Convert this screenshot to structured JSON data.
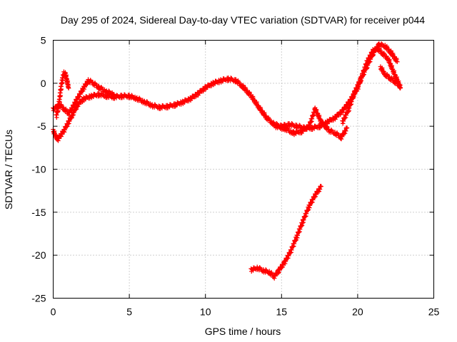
{
  "chart_data": {
    "type": "scatter",
    "title": "Day 295 of 2024, Sidereal Day-to-day VTEC variation (SDTVAR) for receiver p044",
    "xlabel": "GPS time / hours",
    "ylabel": "SDTVAR / TECUs",
    "xlim": [
      0,
      25
    ],
    "ylim": [
      -25,
      5
    ],
    "xticks": [
      0,
      5,
      10,
      15,
      20,
      25
    ],
    "yticks": [
      5,
      0,
      -5,
      -10,
      -15,
      -20,
      -25
    ],
    "grid": true,
    "marker": "plus",
    "color": "#ff0000",
    "series": [
      {
        "name": "main trace",
        "x": [
          0.0,
          0.1,
          0.2,
          0.3,
          0.5,
          0.7,
          1.0,
          1.3,
          1.6,
          2.0,
          2.5,
          3.0,
          3.5,
          4.0,
          4.5,
          5.0,
          5.5,
          6.0,
          6.5,
          7.0,
          7.5,
          8.0,
          8.5,
          9.0,
          9.5,
          10.0,
          10.5,
          11.0,
          11.5,
          12.0,
          12.5,
          13.0,
          13.5,
          14.0,
          14.5,
          15.0,
          15.5,
          16.0,
          16.5,
          17.0,
          17.5,
          18.0,
          18.5,
          19.0,
          19.5,
          20.0,
          20.3,
          20.6,
          21.0,
          21.3,
          21.6,
          22.0,
          22.3,
          22.6,
          22.8
        ],
        "y": [
          -5.5,
          -6.0,
          -6.3,
          -6.5,
          -6.0,
          -5.5,
          -4.5,
          -3.5,
          -2.5,
          -1.8,
          -1.5,
          -1.3,
          -1.5,
          -1.6,
          -1.5,
          -1.5,
          -1.8,
          -2.2,
          -2.6,
          -2.8,
          -2.7,
          -2.5,
          -2.2,
          -1.8,
          -1.2,
          -0.5,
          0.0,
          0.3,
          0.5,
          0.3,
          -0.5,
          -1.5,
          -2.8,
          -4.0,
          -4.8,
          -5.0,
          -4.8,
          -5.0,
          -5.2,
          -5.2,
          -5.0,
          -4.5,
          -4.0,
          -3.2,
          -2.0,
          -0.5,
          1.0,
          2.5,
          3.8,
          4.0,
          3.5,
          2.8,
          1.5,
          0.3,
          -0.5
        ]
      },
      {
        "name": "upper branch",
        "x": [
          0.0,
          0.2,
          0.4,
          0.7,
          1.0,
          1.2,
          1.5,
          2.0,
          2.3,
          2.6,
          3.0,
          3.5,
          4.0
        ],
        "y": [
          -3.0,
          -2.8,
          -2.5,
          -3.0,
          -3.5,
          -3.0,
          -2.0,
          -0.5,
          0.3,
          0.0,
          -0.5,
          -1.0,
          -1.3
        ]
      },
      {
        "name": "early rise",
        "x": [
          0.2,
          0.3,
          0.4,
          0.5,
          0.6,
          0.7,
          0.8,
          0.9,
          1.0
        ],
        "y": [
          -3.8,
          -3.0,
          -2.0,
          -0.5,
          0.5,
          1.2,
          1.0,
          0.3,
          -0.5
        ]
      },
      {
        "name": "late dip",
        "x": [
          14.6,
          15.2,
          15.8,
          16.3,
          16.8,
          17.2,
          17.6,
          18.1,
          18.5,
          18.9,
          19.3
        ],
        "y": [
          -5.0,
          -5.3,
          -5.8,
          -5.6,
          -5.0,
          -3.0,
          -4.5,
          -5.5,
          -5.8,
          -6.3,
          -5.2
        ]
      },
      {
        "name": "late rise",
        "x": [
          19.0,
          19.4,
          19.8,
          20.2,
          20.6,
          21.0,
          21.4,
          21.8,
          22.2,
          22.6
        ],
        "y": [
          -4.5,
          -3.0,
          -1.0,
          0.5,
          2.0,
          3.5,
          4.5,
          4.3,
          3.5,
          2.5
        ]
      },
      {
        "name": "post-max loop",
        "x": [
          21.5,
          21.8,
          22.1,
          22.4,
          22.7,
          22.8
        ],
        "y": [
          1.8,
          1.0,
          0.6,
          0.2,
          -0.2,
          -0.5
        ]
      },
      {
        "name": "lower arc",
        "x": [
          13.0,
          13.4,
          13.8,
          14.2,
          14.5,
          14.8,
          15.2,
          15.6,
          16.0,
          16.4,
          16.8,
          17.2,
          17.6
        ],
        "y": [
          -21.7,
          -21.5,
          -21.8,
          -22.0,
          -22.5,
          -21.8,
          -20.8,
          -19.5,
          -17.8,
          -16.0,
          -14.3,
          -13.0,
          -12.0
        ]
      }
    ]
  }
}
